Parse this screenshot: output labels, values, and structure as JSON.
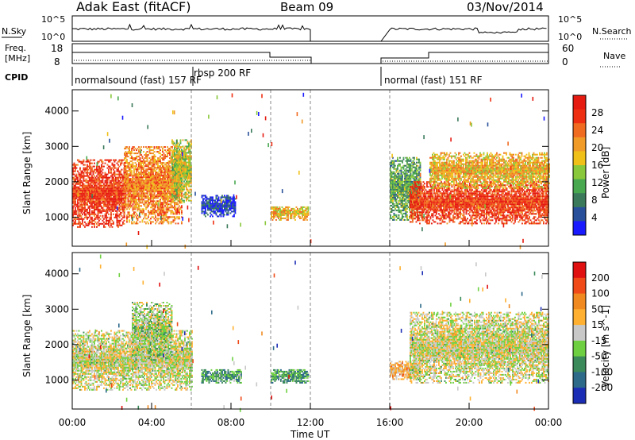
{
  "header": {
    "title": "Adak East (fitACF)",
    "beam": "Beam 09",
    "date": "03/Nov/2014"
  },
  "status_panels": {
    "nsky_label": "N.Sky",
    "nsky_ticks": [
      "10^5",
      "10^0"
    ],
    "nsearch_label": "N.Search",
    "nsearch_ticks": [
      "10^5",
      "10^0"
    ],
    "freq_label": "Freq.",
    "freq_unit": "[MHz]",
    "freq_ticks": [
      "18",
      "8"
    ],
    "nave_label": "Nave",
    "nave_ticks": [
      "60",
      "0"
    ],
    "cpid_label": "CPID",
    "cpid_segments": [
      "normalsound (fast) 157 RF",
      "rbsp 200 RF",
      "normal (fast) 151 RF"
    ]
  },
  "colorbars": {
    "power": {
      "label": "Power [dB]",
      "ticks": [
        "4",
        "8",
        "12",
        "16",
        "20",
        "24",
        "28"
      ],
      "colors": [
        "#1a1aff",
        "#28509a",
        "#3a7a5a",
        "#48a850",
        "#88c83a",
        "#f0c018",
        "#f09a28",
        "#f06a20",
        "#ef2f12",
        "#e51a10"
      ]
    },
    "velocity": {
      "label": "Velocity [m s^-1]",
      "ticks": [
        "200",
        "100",
        "50",
        "15",
        "-15",
        "-50",
        "-100",
        "-200"
      ],
      "colors": [
        "#1c2db5",
        "#2d6a8a",
        "#3a8a5a",
        "#6ed040",
        "#c8c8c8",
        "#ffb030",
        "#f08a20",
        "#f04a18",
        "#e01010"
      ]
    }
  },
  "chart_data": [
    {
      "type": "heatmap",
      "name": "power",
      "xlabel": "",
      "ylabel": "Slant Range [km]",
      "y_ticks": [
        1000,
        2000,
        3000,
        4000
      ],
      "ylim": [
        180,
        4600
      ],
      "xlim_hours": [
        0,
        24
      ],
      "gaps_hours": [
        [
          12,
          16
        ]
      ],
      "mode_boundaries_hours": [
        6,
        10
      ],
      "regions": [
        {
          "t0": 0.0,
          "t1": 2.6,
          "r0": 700,
          "r1": 2600,
          "level": 0.85
        },
        {
          "t0": 2.6,
          "t1": 5.5,
          "r0": 800,
          "r1": 3000,
          "level": 0.7
        },
        {
          "t0": 5.0,
          "t1": 6.0,
          "r0": 1400,
          "r1": 3200,
          "level": 0.5
        },
        {
          "t0": 6.5,
          "t1": 8.2,
          "r0": 1000,
          "r1": 1600,
          "level": 0.1
        },
        {
          "t0": 10.0,
          "t1": 11.9,
          "r0": 900,
          "r1": 1300,
          "level": 0.6
        },
        {
          "t0": 16.0,
          "t1": 17.5,
          "r0": 900,
          "r1": 2700,
          "level": 0.35
        },
        {
          "t0": 17.0,
          "t1": 24.0,
          "r0": 800,
          "r1": 2000,
          "level": 0.85
        },
        {
          "t0": 18.0,
          "t1": 24.0,
          "r0": 1800,
          "r1": 2800,
          "level": 0.6
        }
      ]
    },
    {
      "type": "heatmap",
      "name": "velocity",
      "xlabel": "Time UT",
      "ylabel": "Slant Range [km]",
      "x_ticks": [
        "00:00",
        "04:00",
        "08:00",
        "12:00",
        "16:00",
        "20:00",
        "00:00"
      ],
      "y_ticks": [
        1000,
        2000,
        3000,
        4000
      ],
      "ylim": [
        180,
        4600
      ],
      "xlim_hours": [
        0,
        24
      ],
      "gaps_hours": [
        [
          12,
          16
        ]
      ],
      "mode_boundaries_hours": [
        6,
        10
      ],
      "regions": [
        {
          "t0": 0.0,
          "t1": 6.0,
          "r0": 700,
          "r1": 2400,
          "level": 0.5
        },
        {
          "t0": 3.0,
          "t1": 5.0,
          "r0": 1500,
          "r1": 3200,
          "level": 0.45
        },
        {
          "t0": 6.5,
          "t1": 8.5,
          "r0": 900,
          "r1": 1300,
          "level": 0.3
        },
        {
          "t0": 10.0,
          "t1": 11.9,
          "r0": 900,
          "r1": 1300,
          "level": 0.3
        },
        {
          "t0": 16.0,
          "t1": 17.5,
          "r0": 1000,
          "r1": 1500,
          "level": 0.62
        },
        {
          "t0": 17.0,
          "t1": 24.0,
          "r0": 900,
          "r1": 2900,
          "level": 0.5
        }
      ]
    }
  ]
}
